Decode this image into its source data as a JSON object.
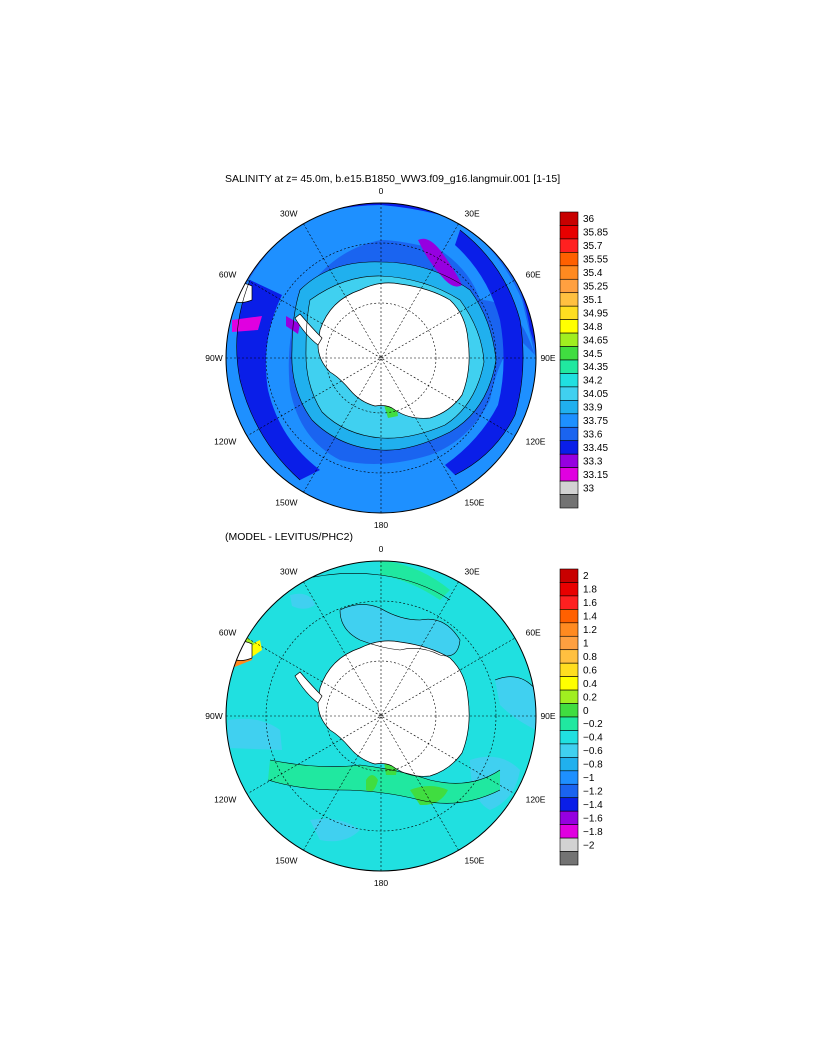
{
  "chart_data": [
    {
      "type": "heatmap",
      "title": "SALINITY at z=  45.0m, b.e15.B1850_WW3.f09_g16.langmuir.001 [1-15]",
      "projection": "south polar stereographic",
      "lon_labels": [
        "0",
        "30E",
        "60E",
        "90E",
        "120E",
        "150E",
        "180",
        "150W",
        "120W",
        "90W",
        "60W",
        "30W"
      ],
      "colorbar_levels": [
        "36",
        "35.85",
        "35.7",
        "35.55",
        "35.4",
        "35.25",
        "35.1",
        "34.95",
        "34.8",
        "34.65",
        "34.5",
        "34.35",
        "34.2",
        "34.05",
        "33.9",
        "33.75",
        "33.6",
        "33.45",
        "33.3",
        "33.15",
        "33"
      ],
      "colorbar_colors": [
        "#c80000",
        "#e80000",
        "#ff2020",
        "#ff6000",
        "#ff8a20",
        "#ffa040",
        "#ffc040",
        "#ffde20",
        "#ffff00",
        "#a0ee20",
        "#40dd40",
        "#20e8a0",
        "#20e0e0",
        "#40d0f0",
        "#20b0ee",
        "#1e90ff",
        "#1a64f0",
        "#0a1ee8",
        "#9600e0",
        "#e000e0",
        "#d2d2d2",
        "#737373"
      ]
    },
    {
      "type": "heatmap",
      "title": "(MODEL - LEVITUS/PHC2)",
      "projection": "south polar stereographic",
      "lon_labels": [
        "0",
        "30E",
        "60E",
        "90E",
        "120E",
        "150E",
        "180",
        "150W",
        "120W",
        "90W",
        "60W",
        "30W"
      ],
      "colorbar_levels": [
        "2",
        "1.8",
        "1.6",
        "1.4",
        "1.2",
        "1",
        "0.8",
        "0.6",
        "0.4",
        "0.2",
        "0",
        "−0.2",
        "−0.4",
        "−0.6",
        "−0.8",
        "−1",
        "−1.2",
        "−1.4",
        "−1.6",
        "−1.8",
        "−2"
      ],
      "colorbar_colors": [
        "#c80000",
        "#e80000",
        "#ff2020",
        "#ff6000",
        "#ff8a20",
        "#ffa040",
        "#ffc040",
        "#ffde20",
        "#ffff00",
        "#a0ee20",
        "#40dd40",
        "#20e8a0",
        "#20e0e0",
        "#40d0f0",
        "#20b0ee",
        "#1e90ff",
        "#1a64f0",
        "#0a1ee8",
        "#9600e0",
        "#e000e0",
        "#d2d2d2",
        "#737373"
      ]
    }
  ]
}
